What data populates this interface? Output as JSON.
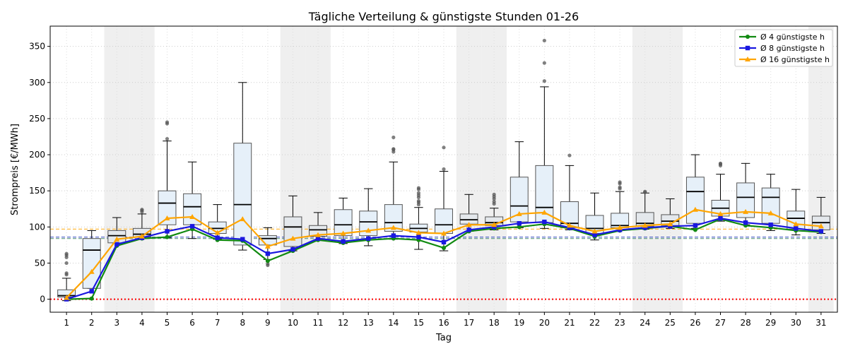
{
  "chart_data": {
    "type": "box",
    "title": "Tägliche Verteilung & günstigste Stunden 01-26",
    "xlabel": "Tag",
    "ylabel": "Strompreis [€/MWh]",
    "ylim": [
      -18,
      378
    ],
    "yticks": [
      0,
      50,
      100,
      150,
      200,
      250,
      300,
      350
    ],
    "grid": "y, dotted",
    "legend_position": "top-right",
    "weekend_days": [
      3,
      4,
      10,
      11,
      17,
      18,
      24,
      25,
      31
    ],
    "reference_lines": [
      {
        "value": 0,
        "color": "#ff0000",
        "style": "dotted"
      },
      {
        "value": 97,
        "color": "#ffa500",
        "style": "dashed"
      },
      {
        "value": 86,
        "color": "#2a3fbf",
        "style": "dashed"
      },
      {
        "value": 84,
        "color": "#2e7d5b",
        "style": "dashed"
      }
    ],
    "categories": [
      "1",
      "2",
      "3",
      "4",
      "5",
      "6",
      "7",
      "8",
      "9",
      "10",
      "11",
      "12",
      "13",
      "14",
      "15",
      "16",
      "17",
      "18",
      "19",
      "20",
      "21",
      "22",
      "23",
      "24",
      "25",
      "26",
      "27",
      "28",
      "29",
      "30",
      "31"
    ],
    "boxes": [
      {
        "day": 1,
        "whislo": -2,
        "q1": 3,
        "med": 5,
        "q3": 13,
        "whishi": 29,
        "fliers": [
          36,
          34,
          50,
          58,
          61,
          63
        ]
      },
      {
        "day": 2,
        "whislo": 15,
        "q1": 15,
        "med": 68,
        "q3": 84,
        "whishi": 95,
        "fliers": []
      },
      {
        "day": 3,
        "whislo": 78,
        "q1": 78,
        "med": 88,
        "q3": 95,
        "whishi": 113,
        "fliers": []
      },
      {
        "day": 4,
        "whislo": 86,
        "q1": 86,
        "med": 90,
        "q3": 98,
        "whishi": 118,
        "fliers": [
          121,
          123,
          124
        ]
      },
      {
        "day": 5,
        "whislo": 85,
        "q1": 103,
        "med": 133,
        "q3": 150,
        "whishi": 219,
        "fliers": [
          222,
          243,
          245
        ]
      },
      {
        "day": 6,
        "whislo": 84,
        "q1": 103,
        "med": 128,
        "q3": 146,
        "whishi": 190,
        "fliers": []
      },
      {
        "day": 7,
        "whislo": 83,
        "q1": 91,
        "med": 98,
        "q3": 107,
        "whishi": 131,
        "fliers": []
      },
      {
        "day": 8,
        "whislo": 68,
        "q1": 75,
        "med": 131,
        "q3": 216,
        "whishi": 300,
        "fliers": []
      },
      {
        "day": 9,
        "whislo": 55,
        "q1": 75,
        "med": 84,
        "q3": 88,
        "whishi": 99,
        "fliers": [
          47,
          49
        ]
      },
      {
        "day": 10,
        "whislo": 67,
        "q1": 73,
        "med": 100,
        "q3": 114,
        "whishi": 143,
        "fliers": []
      },
      {
        "day": 11,
        "whislo": 82,
        "q1": 87,
        "med": 96,
        "q3": 102,
        "whishi": 120,
        "fliers": []
      },
      {
        "day": 12,
        "whislo": 77,
        "q1": 88,
        "med": 103,
        "q3": 124,
        "whishi": 140,
        "fliers": []
      },
      {
        "day": 13,
        "whislo": 74,
        "q1": 88,
        "med": 107,
        "q3": 122,
        "whishi": 153,
        "fliers": []
      },
      {
        "day": 14,
        "whislo": 83,
        "q1": 94,
        "med": 106,
        "q3": 131,
        "whishi": 190,
        "fliers": [
          204,
          207,
          208,
          224
        ]
      },
      {
        "day": 15,
        "whislo": 69,
        "q1": 93,
        "med": 98,
        "q3": 104,
        "whishi": 127,
        "fliers": [
          131,
          134,
          136,
          141,
          144,
          147,
          152,
          154
        ]
      },
      {
        "day": 16,
        "whislo": 67,
        "q1": 91,
        "med": 103,
        "q3": 125,
        "whishi": 177,
        "fliers": [
          180,
          210
        ]
      },
      {
        "day": 17,
        "whislo": 94,
        "q1": 104,
        "med": 110,
        "q3": 118,
        "whishi": 145,
        "fliers": []
      },
      {
        "day": 18,
        "whislo": 96,
        "q1": 102,
        "med": 106,
        "q3": 114,
        "whishi": 126,
        "fliers": [
          132,
          135,
          139,
          142,
          145
        ]
      },
      {
        "day": 19,
        "whislo": 99,
        "q1": 107,
        "med": 129,
        "q3": 169,
        "whishi": 218,
        "fliers": []
      },
      {
        "day": 20,
        "whislo": 98,
        "q1": 106,
        "med": 127,
        "q3": 185,
        "whishi": 294,
        "fliers": [
          302,
          327,
          358
        ]
      },
      {
        "day": 21,
        "whislo": 96,
        "q1": 99,
        "med": 105,
        "q3": 135,
        "whishi": 185,
        "fliers": [
          199
        ]
      },
      {
        "day": 22,
        "whislo": 82,
        "q1": 91,
        "med": 98,
        "q3": 116,
        "whishi": 147,
        "fliers": []
      },
      {
        "day": 23,
        "whislo": 95,
        "q1": 99,
        "med": 102,
        "q3": 119,
        "whishi": 149,
        "fliers": [
          153,
          155,
          160,
          162
        ]
      },
      {
        "day": 24,
        "whislo": 97,
        "q1": 101,
        "med": 105,
        "q3": 120,
        "whishi": 147,
        "fliers": [
          148,
          149
        ]
      },
      {
        "day": 25,
        "whislo": 98,
        "q1": 102,
        "med": 108,
        "q3": 117,
        "whishi": 139,
        "fliers": []
      },
      {
        "day": 26,
        "whislo": 98,
        "q1": 105,
        "med": 149,
        "q3": 169,
        "whishi": 200,
        "fliers": []
      },
      {
        "day": 27,
        "whislo": 108,
        "q1": 115,
        "med": 126,
        "q3": 137,
        "whishi": 173,
        "fliers": [
          185,
          187,
          188
        ]
      },
      {
        "day": 28,
        "whislo": 103,
        "q1": 113,
        "med": 141,
        "q3": 161,
        "whishi": 188,
        "fliers": []
      },
      {
        "day": 29,
        "whislo": 95,
        "q1": 105,
        "med": 141,
        "q3": 154,
        "whishi": 173,
        "fliers": []
      },
      {
        "day": 30,
        "whislo": 89,
        "q1": 97,
        "med": 112,
        "q3": 122,
        "whishi": 152,
        "fliers": []
      },
      {
        "day": 31,
        "whislo": 91,
        "q1": 96,
        "med": 106,
        "q3": 115,
        "whishi": 141,
        "fliers": []
      }
    ],
    "series": [
      {
        "name": "Ø 4 günstigste h",
        "color": "#118a11",
        "marker": "circle",
        "values": [
          0,
          1,
          74,
          84,
          86,
          97,
          82,
          81,
          53,
          67,
          82,
          78,
          82,
          84,
          82,
          71,
          94,
          98,
          100,
          104,
          98,
          87,
          95,
          98,
          101,
          96,
          111,
          102,
          99,
          95,
          93
        ]
      },
      {
        "name": "Ø 8 günstigste h",
        "color": "#1a18e0",
        "marker": "square",
        "values": [
          0,
          11,
          76,
          85,
          94,
          101,
          85,
          83,
          63,
          69,
          84,
          80,
          84,
          88,
          86,
          79,
          96,
          100,
          105,
          107,
          99,
          89,
          96,
          99,
          101,
          102,
          112,
          106,
          103,
          98,
          94
        ]
      },
      {
        "name": "Ø 16 günstigste h",
        "color": "#ffa500",
        "marker": "triangle",
        "values": [
          2,
          38,
          83,
          87,
          112,
          114,
          92,
          111,
          73,
          84,
          89,
          91,
          95,
          99,
          92,
          91,
          103,
          103,
          118,
          120,
          102,
          94,
          99,
          102,
          104,
          124,
          118,
          121,
          119,
          104,
          101
        ]
      }
    ]
  }
}
